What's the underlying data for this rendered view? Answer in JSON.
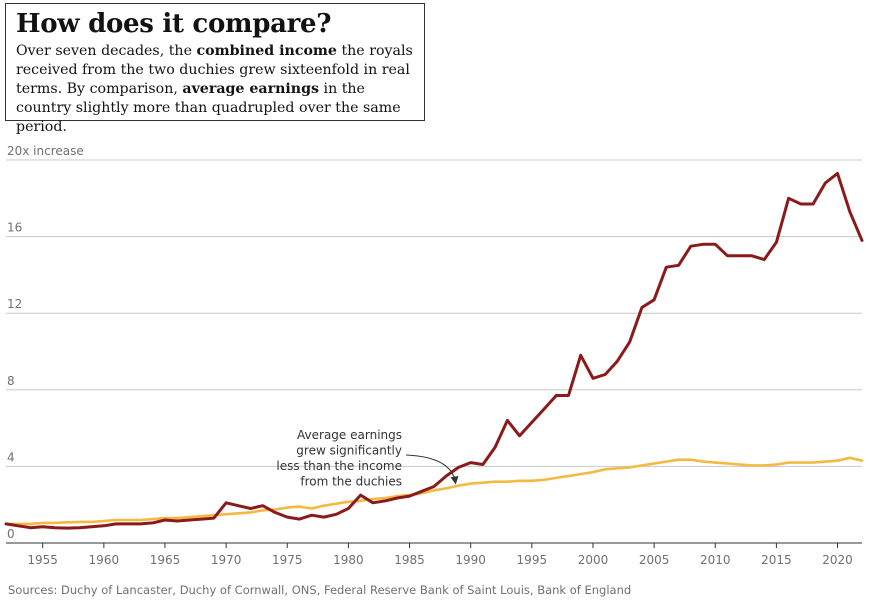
{
  "header": {
    "title": "How does it compare?",
    "subtitle_parts": [
      {
        "text": "Over seven decades, the ",
        "bold": false
      },
      {
        "text": "combined income",
        "bold": true
      },
      {
        "text": " the royals received from the two duchies grew sixteenfold in real terms. By comparison, ",
        "bold": false
      },
      {
        "text": "average earnings",
        "bold": true
      },
      {
        "text": " in the country slightly more than quadrupled over the same period.",
        "bold": false
      }
    ]
  },
  "chart_data": {
    "type": "line",
    "ylim": [
      0,
      20
    ],
    "yticks": [
      0,
      4,
      8,
      12,
      16,
      20
    ],
    "ytick_labels": [
      "0",
      "4",
      "8",
      "12",
      "16",
      "20x increase"
    ],
    "xlim": [
      1952,
      2022
    ],
    "xticks": [
      1955,
      1960,
      1965,
      1970,
      1975,
      1980,
      1985,
      1990,
      1995,
      2000,
      2005,
      2010,
      2015,
      2020
    ],
    "grid": true,
    "series": [
      {
        "key": "duchies",
        "color": "#8b1a1a",
        "x": [
          1952,
          1953,
          1954,
          1955,
          1956,
          1957,
          1958,
          1959,
          1960,
          1961,
          1962,
          1963,
          1964,
          1965,
          1966,
          1967,
          1968,
          1969,
          1970,
          1971,
          1972,
          1973,
          1974,
          1975,
          1976,
          1977,
          1978,
          1979,
          1980,
          1981,
          1982,
          1983,
          1984,
          1985,
          1986,
          1987,
          1988,
          1989,
          1990,
          1991,
          1992,
          1993,
          1994,
          1995,
          1996,
          1997,
          1998,
          1999,
          2000,
          2001,
          2002,
          2003,
          2004,
          2005,
          2006,
          2007,
          2008,
          2009,
          2010,
          2011,
          2012,
          2013,
          2014,
          2015,
          2016,
          2017,
          2018,
          2019,
          2020,
          2021,
          2022
        ],
        "values": [
          1.0,
          0.9,
          0.8,
          0.85,
          0.8,
          0.78,
          0.8,
          0.85,
          0.9,
          1.0,
          1.0,
          1.0,
          1.05,
          1.2,
          1.15,
          1.2,
          1.25,
          1.3,
          2.1,
          1.95,
          1.8,
          1.95,
          1.6,
          1.35,
          1.25,
          1.45,
          1.35,
          1.5,
          1.8,
          2.5,
          2.1,
          2.2,
          2.35,
          2.45,
          2.7,
          2.95,
          3.5,
          3.95,
          4.2,
          4.1,
          5.0,
          6.4,
          5.6,
          6.3,
          7.0,
          7.7,
          7.7,
          9.8,
          8.6,
          8.8,
          9.5,
          10.5,
          12.3,
          12.7,
          14.4,
          14.5,
          15.5,
          15.6,
          15.6,
          15.0,
          15.0,
          15.0,
          14.8,
          15.7,
          18.0,
          17.7,
          17.7,
          18.8,
          19.3,
          17.3,
          15.8
        ]
      },
      {
        "key": "earnings",
        "color": "#f5b942",
        "x": [
          1952,
          1953,
          1954,
          1955,
          1956,
          1957,
          1958,
          1959,
          1960,
          1961,
          1962,
          1963,
          1964,
          1965,
          1966,
          1967,
          1968,
          1969,
          1970,
          1971,
          1972,
          1973,
          1974,
          1975,
          1976,
          1977,
          1978,
          1979,
          1980,
          1981,
          1982,
          1983,
          1984,
          1985,
          1986,
          1987,
          1988,
          1989,
          1990,
          1991,
          1992,
          1993,
          1994,
          1995,
          1996,
          1997,
          1998,
          1999,
          2000,
          2001,
          2002,
          2003,
          2004,
          2005,
          2006,
          2007,
          2008,
          2009,
          2010,
          2011,
          2012,
          2013,
          2014,
          2015,
          2016,
          2017,
          2018,
          2019,
          2020,
          2021,
          2022
        ],
        "values": [
          1.0,
          1.0,
          1.0,
          1.05,
          1.05,
          1.08,
          1.1,
          1.1,
          1.15,
          1.2,
          1.2,
          1.2,
          1.25,
          1.3,
          1.3,
          1.35,
          1.4,
          1.45,
          1.5,
          1.55,
          1.6,
          1.7,
          1.75,
          1.85,
          1.9,
          1.8,
          1.95,
          2.05,
          2.15,
          2.2,
          2.3,
          2.35,
          2.45,
          2.5,
          2.6,
          2.75,
          2.85,
          3.0,
          3.1,
          3.15,
          3.2,
          3.2,
          3.25,
          3.25,
          3.3,
          3.4,
          3.5,
          3.6,
          3.7,
          3.85,
          3.9,
          3.95,
          4.05,
          4.15,
          4.25,
          4.35,
          4.35,
          4.25,
          4.2,
          4.15,
          4.1,
          4.05,
          4.05,
          4.1,
          4.2,
          4.2,
          4.2,
          4.25,
          4.3,
          4.45,
          4.3
        ]
      }
    ],
    "annotations": [
      {
        "lines": [
          "Average earnings",
          "grew significantly",
          "less than the income",
          "from the duchies"
        ],
        "arrow_x": 1989,
        "arrow_y": 2.95
      }
    ]
  },
  "footer": {
    "source": "Sources: Duchy of Lancaster, Duchy of Cornwall, ONS, Federal Reserve Bank of Saint Louis, Bank of England"
  }
}
